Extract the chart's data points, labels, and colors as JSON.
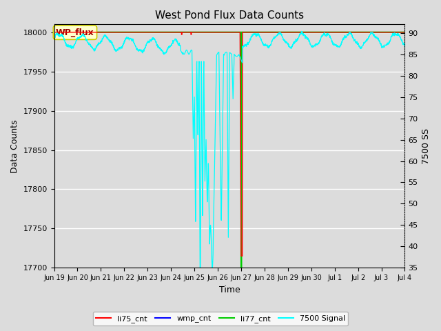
{
  "title": "West Pond Flux Data Counts",
  "xlabel": "Time",
  "ylabel": "Data Counts",
  "ylabel_right": "7500 SS",
  "ylim_left": [
    17700,
    18010
  ],
  "ylim_right": [
    35,
    92
  ],
  "bg_color": "#dcdcdc",
  "annotation_box_text": "WP_flux",
  "annotation_box_color": "#ffffcc",
  "annotation_box_text_color": "#990000",
  "annotation_box_edge_color": "#cccc00",
  "total_days": 15,
  "grid_color": "white",
  "yticks_left": [
    17700,
    17750,
    17800,
    17850,
    17900,
    17950,
    18000
  ],
  "yticks_right": [
    35,
    40,
    45,
    50,
    55,
    60,
    65,
    70,
    75,
    80,
    85,
    90
  ],
  "xtick_labels": [
    "Jun 19",
    "Jun 20",
    "Jun 21",
    "Jun 22",
    "Jun 23",
    "Jun 24",
    "Jun 25",
    "Jun 26",
    "Jun 27",
    "Jun 28",
    "Jun 29",
    "Jun 30",
    "Jul 1",
    "Jul 2",
    "Jul 3",
    "Jul 4"
  ],
  "legend_entries": [
    "li75_cnt",
    "wmp_cnt",
    "li77_cnt",
    "7500 Signal"
  ],
  "legend_colors": [
    "red",
    "blue",
    "#00cc00",
    "cyan"
  ]
}
